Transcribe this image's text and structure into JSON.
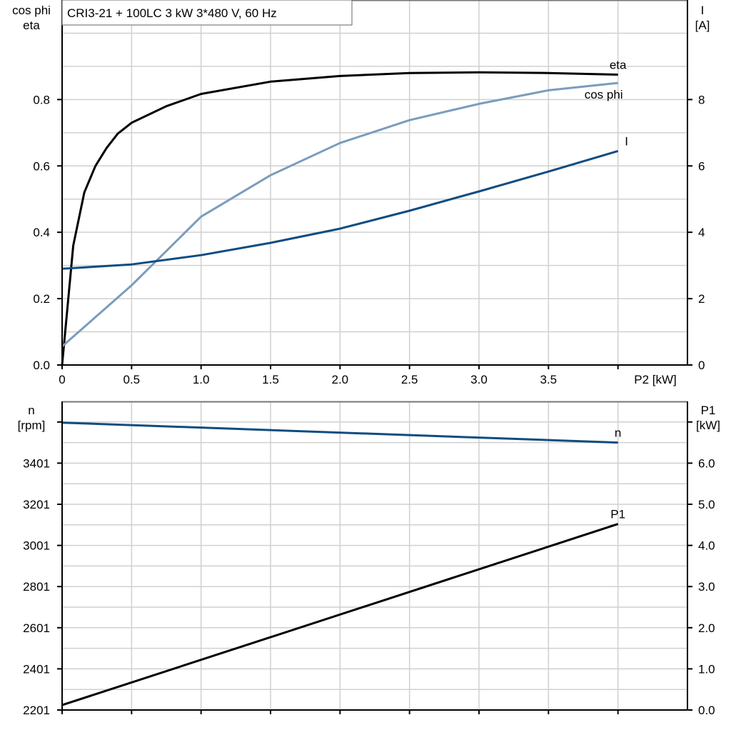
{
  "title": "CRI3-21 + 100LC   3 kW   3*480 V, 60 Hz",
  "colors": {
    "eta": "#000000",
    "cos_phi": "#7a9cbd",
    "I": "#0f4c81",
    "n": "#0f4c81",
    "P1": "#000000",
    "grid": "#d0d0d0"
  },
  "chart_data": [
    {
      "type": "line",
      "xlabel": "P2 [kW]",
      "ylabel_left": [
        "cos phi",
        "eta"
      ],
      "ylabel_right": [
        "I",
        "[A]"
      ],
      "xlim": [
        0,
        4.5
      ],
      "x_ticks": [
        "0",
        "0.5",
        "1.0",
        "1.5",
        "2.0",
        "2.5",
        "3.0",
        "3.5"
      ],
      "ylim_left": [
        0,
        1.1
      ],
      "y_ticks_left": [
        "0.0",
        "0.2",
        "0.4",
        "0.6",
        "0.8"
      ],
      "ylim_right": [
        0,
        11
      ],
      "y_ticks_right": [
        "0",
        "2",
        "4",
        "6",
        "8"
      ],
      "grid": true,
      "series": [
        {
          "name": "eta",
          "axis": "left",
          "x": [
            0,
            0.08,
            0.16,
            0.24,
            0.32,
            0.4,
            0.5,
            0.75,
            1.0,
            1.5,
            2.0,
            2.5,
            3.0,
            3.5,
            4.0
          ],
          "y": [
            0,
            0.36,
            0.52,
            0.6,
            0.654,
            0.697,
            0.73,
            0.78,
            0.817,
            0.854,
            0.871,
            0.88,
            0.882,
            0.88,
            0.875
          ]
        },
        {
          "name": "cos phi",
          "axis": "left",
          "x": [
            0,
            0.5,
            1.0,
            1.5,
            2.0,
            2.5,
            3.0,
            3.5,
            4.0
          ],
          "y": [
            0.056,
            0.24,
            0.447,
            0.572,
            0.669,
            0.738,
            0.787,
            0.828,
            0.85
          ]
        },
        {
          "name": "I",
          "axis": "right",
          "x": [
            0,
            0.5,
            1.0,
            1.5,
            2.0,
            2.5,
            3.0,
            3.5,
            4.0
          ],
          "y": [
            2.9,
            3.03,
            3.31,
            3.68,
            4.11,
            4.65,
            5.23,
            5.83,
            6.45
          ]
        }
      ]
    },
    {
      "type": "line",
      "xlim": [
        0,
        4.5
      ],
      "ylabel_left": [
        "n",
        "[rpm]"
      ],
      "ylabel_right": [
        "P1",
        "[kW]"
      ],
      "ylim_left": [
        2201,
        3701
      ],
      "y_ticks_left": [
        "2201",
        "2401",
        "2601",
        "2801",
        "3001",
        "3201",
        "3401"
      ],
      "ylim_right": [
        0,
        7.5
      ],
      "y_ticks_right": [
        "0.0",
        "1.0",
        "2.0",
        "3.0",
        "4.0",
        "5.0",
        "6.0"
      ],
      "grid": true,
      "series": [
        {
          "name": "n",
          "axis": "left",
          "x": [
            0,
            4.0
          ],
          "y": [
            3598,
            3501
          ]
        },
        {
          "name": "P1",
          "axis": "right",
          "x": [
            0,
            4.0
          ],
          "y": [
            0.12,
            4.52
          ]
        }
      ]
    }
  ]
}
